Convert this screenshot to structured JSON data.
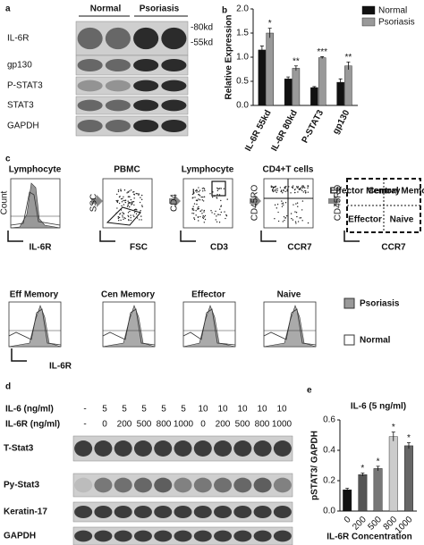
{
  "panel_a": {
    "label": "a",
    "groups": [
      "Normal",
      "Psoriasis"
    ],
    "rows": [
      "IL-6R",
      "gp130",
      "P-STAT3",
      "STAT3",
      "GAPDH"
    ],
    "markers": [
      "-80kd",
      "-55kd"
    ]
  },
  "chart_data": [
    {
      "panel": "b",
      "type": "bar",
      "ylabel": "Relative Expression",
      "categories": [
        "IL-6R 55kd",
        "IL-6R 80kd",
        "P-STAT3",
        "gp130"
      ],
      "series": [
        {
          "name": "Normal",
          "color": "#111111",
          "values": [
            1.15,
            0.55,
            0.37,
            0.48
          ],
          "errors": [
            0.08,
            0.04,
            0.02,
            0.07
          ],
          "significance": [
            null,
            null,
            null,
            null
          ]
        },
        {
          "name": "Psoriasis",
          "color": "#999999",
          "values": [
            1.5,
            0.77,
            0.99,
            0.82
          ],
          "errors": [
            0.1,
            0.05,
            0.02,
            0.08
          ],
          "significance": [
            "*",
            "**",
            "***",
            "**"
          ]
        }
      ],
      "ylim": [
        0,
        2
      ],
      "yticks": [
        {
          "value": 0,
          "label": "0.0"
        },
        0.5,
        {
          "value": 1,
          "label": "1.0"
        },
        1.5,
        {
          "value": 2,
          "label": "2.0"
        }
      ],
      "legend": "upper right"
    },
    {
      "panel": "e",
      "type": "bar",
      "title": "IL-6 (5 ng/ml)",
      "ylabel": "pSTAT3/ GAPDH",
      "xlabel": "IL-6R Concentration",
      "categories": [
        "0",
        "200",
        "500",
        "800",
        "1000"
      ],
      "values": [
        0.14,
        0.24,
        0.28,
        0.49,
        0.43
      ],
      "errors": [
        0.01,
        0.01,
        0.015,
        0.03,
        0.02
      ],
      "significance": [
        null,
        "*",
        "*",
        "*",
        "*"
      ],
      "colors": [
        "#111111",
        "#555555",
        "#777777",
        "#cccccc",
        "#666666"
      ],
      "ylim": [
        0,
        0.6
      ],
      "yticks": [
        {
          "value": 0,
          "label": "0.0"
        },
        0.2,
        0.4,
        0.6
      ]
    }
  ],
  "panel_c": {
    "label": "c",
    "top_titles": [
      "Lymphocyte",
      "PBMC",
      "Lymphocyte",
      "CD4+T cells"
    ],
    "axes": [
      [
        "Count",
        "IL-6R"
      ],
      [
        "SSC",
        "FSC"
      ],
      [
        "CD4",
        "CD3"
      ],
      [
        "CD45RO",
        "CCR7"
      ],
      [
        "CD45RO",
        "CCR7"
      ]
    ],
    "quadrants": [
      "Effector Memory",
      "Central Memory",
      "Effector",
      "Naive"
    ],
    "bottom_titles": [
      "Eff  Memory",
      "Cen Memory",
      "Effector",
      "Naive"
    ],
    "bottom_axis": "IL-6R",
    "legend": [
      "Psoriasis",
      "Normal"
    ]
  },
  "panel_d": {
    "label": "d",
    "row_labels": [
      "IL-6 (ng/ml)",
      "IL-6R (ng/ml)"
    ],
    "il6": [
      "-",
      "5",
      "5",
      "5",
      "5",
      "5",
      "10",
      "10",
      "10",
      "10",
      "10"
    ],
    "il6r": [
      "-",
      "0",
      "200",
      "500",
      "800",
      "1000",
      "0",
      "200",
      "500",
      "800",
      "1000"
    ],
    "blots": [
      "T-Stat3",
      "Py-Stat3",
      "Keratin-17",
      "GAPDH"
    ]
  }
}
